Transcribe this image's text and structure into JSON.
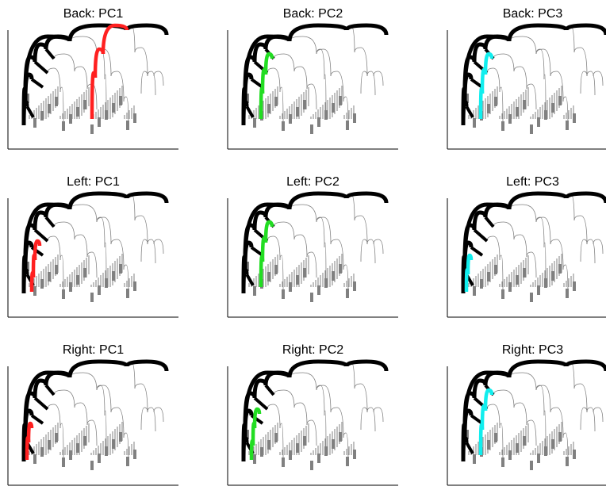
{
  "chart_data": [
    {
      "type": "dendrogram",
      "title": "Back: PC1",
      "highlight_color": "#ff2020",
      "highlighted_branch": "second-cluster"
    },
    {
      "type": "dendrogram",
      "title": "Back: PC2",
      "highlight_color": "#22dd22",
      "highlighted_branch": "first-cluster-inner"
    },
    {
      "type": "dendrogram",
      "title": "Back: PC3",
      "highlight_color": "#11eeee",
      "highlighted_branch": "first-cluster-inner"
    },
    {
      "type": "dendrogram",
      "title": "Left: PC1",
      "highlight_color": "#ff2020",
      "highlighted_branch": "first-cluster-left"
    },
    {
      "type": "dendrogram",
      "title": "Left: PC2",
      "highlight_color": "#22dd22",
      "highlighted_branch": "first-cluster-inner"
    },
    {
      "type": "dendrogram",
      "title": "Left: PC3",
      "highlight_color": "#11eeee",
      "highlighted_branch": "first-cluster-edge"
    },
    {
      "type": "dendrogram",
      "title": "Right: PC1",
      "highlight_color": "#ff2020",
      "highlighted_branch": "first-cluster-edge"
    },
    {
      "type": "dendrogram",
      "title": "Right: PC2",
      "highlight_color": "#22dd22",
      "highlighted_branch": "first-cluster-left"
    },
    {
      "type": "dendrogram",
      "title": "Right: PC3",
      "highlight_color": "#11eeee",
      "highlighted_branch": "first-cluster-inner"
    }
  ],
  "colors": {
    "axis": "#000000",
    "tree": "#808080",
    "trunk": "#000000"
  }
}
